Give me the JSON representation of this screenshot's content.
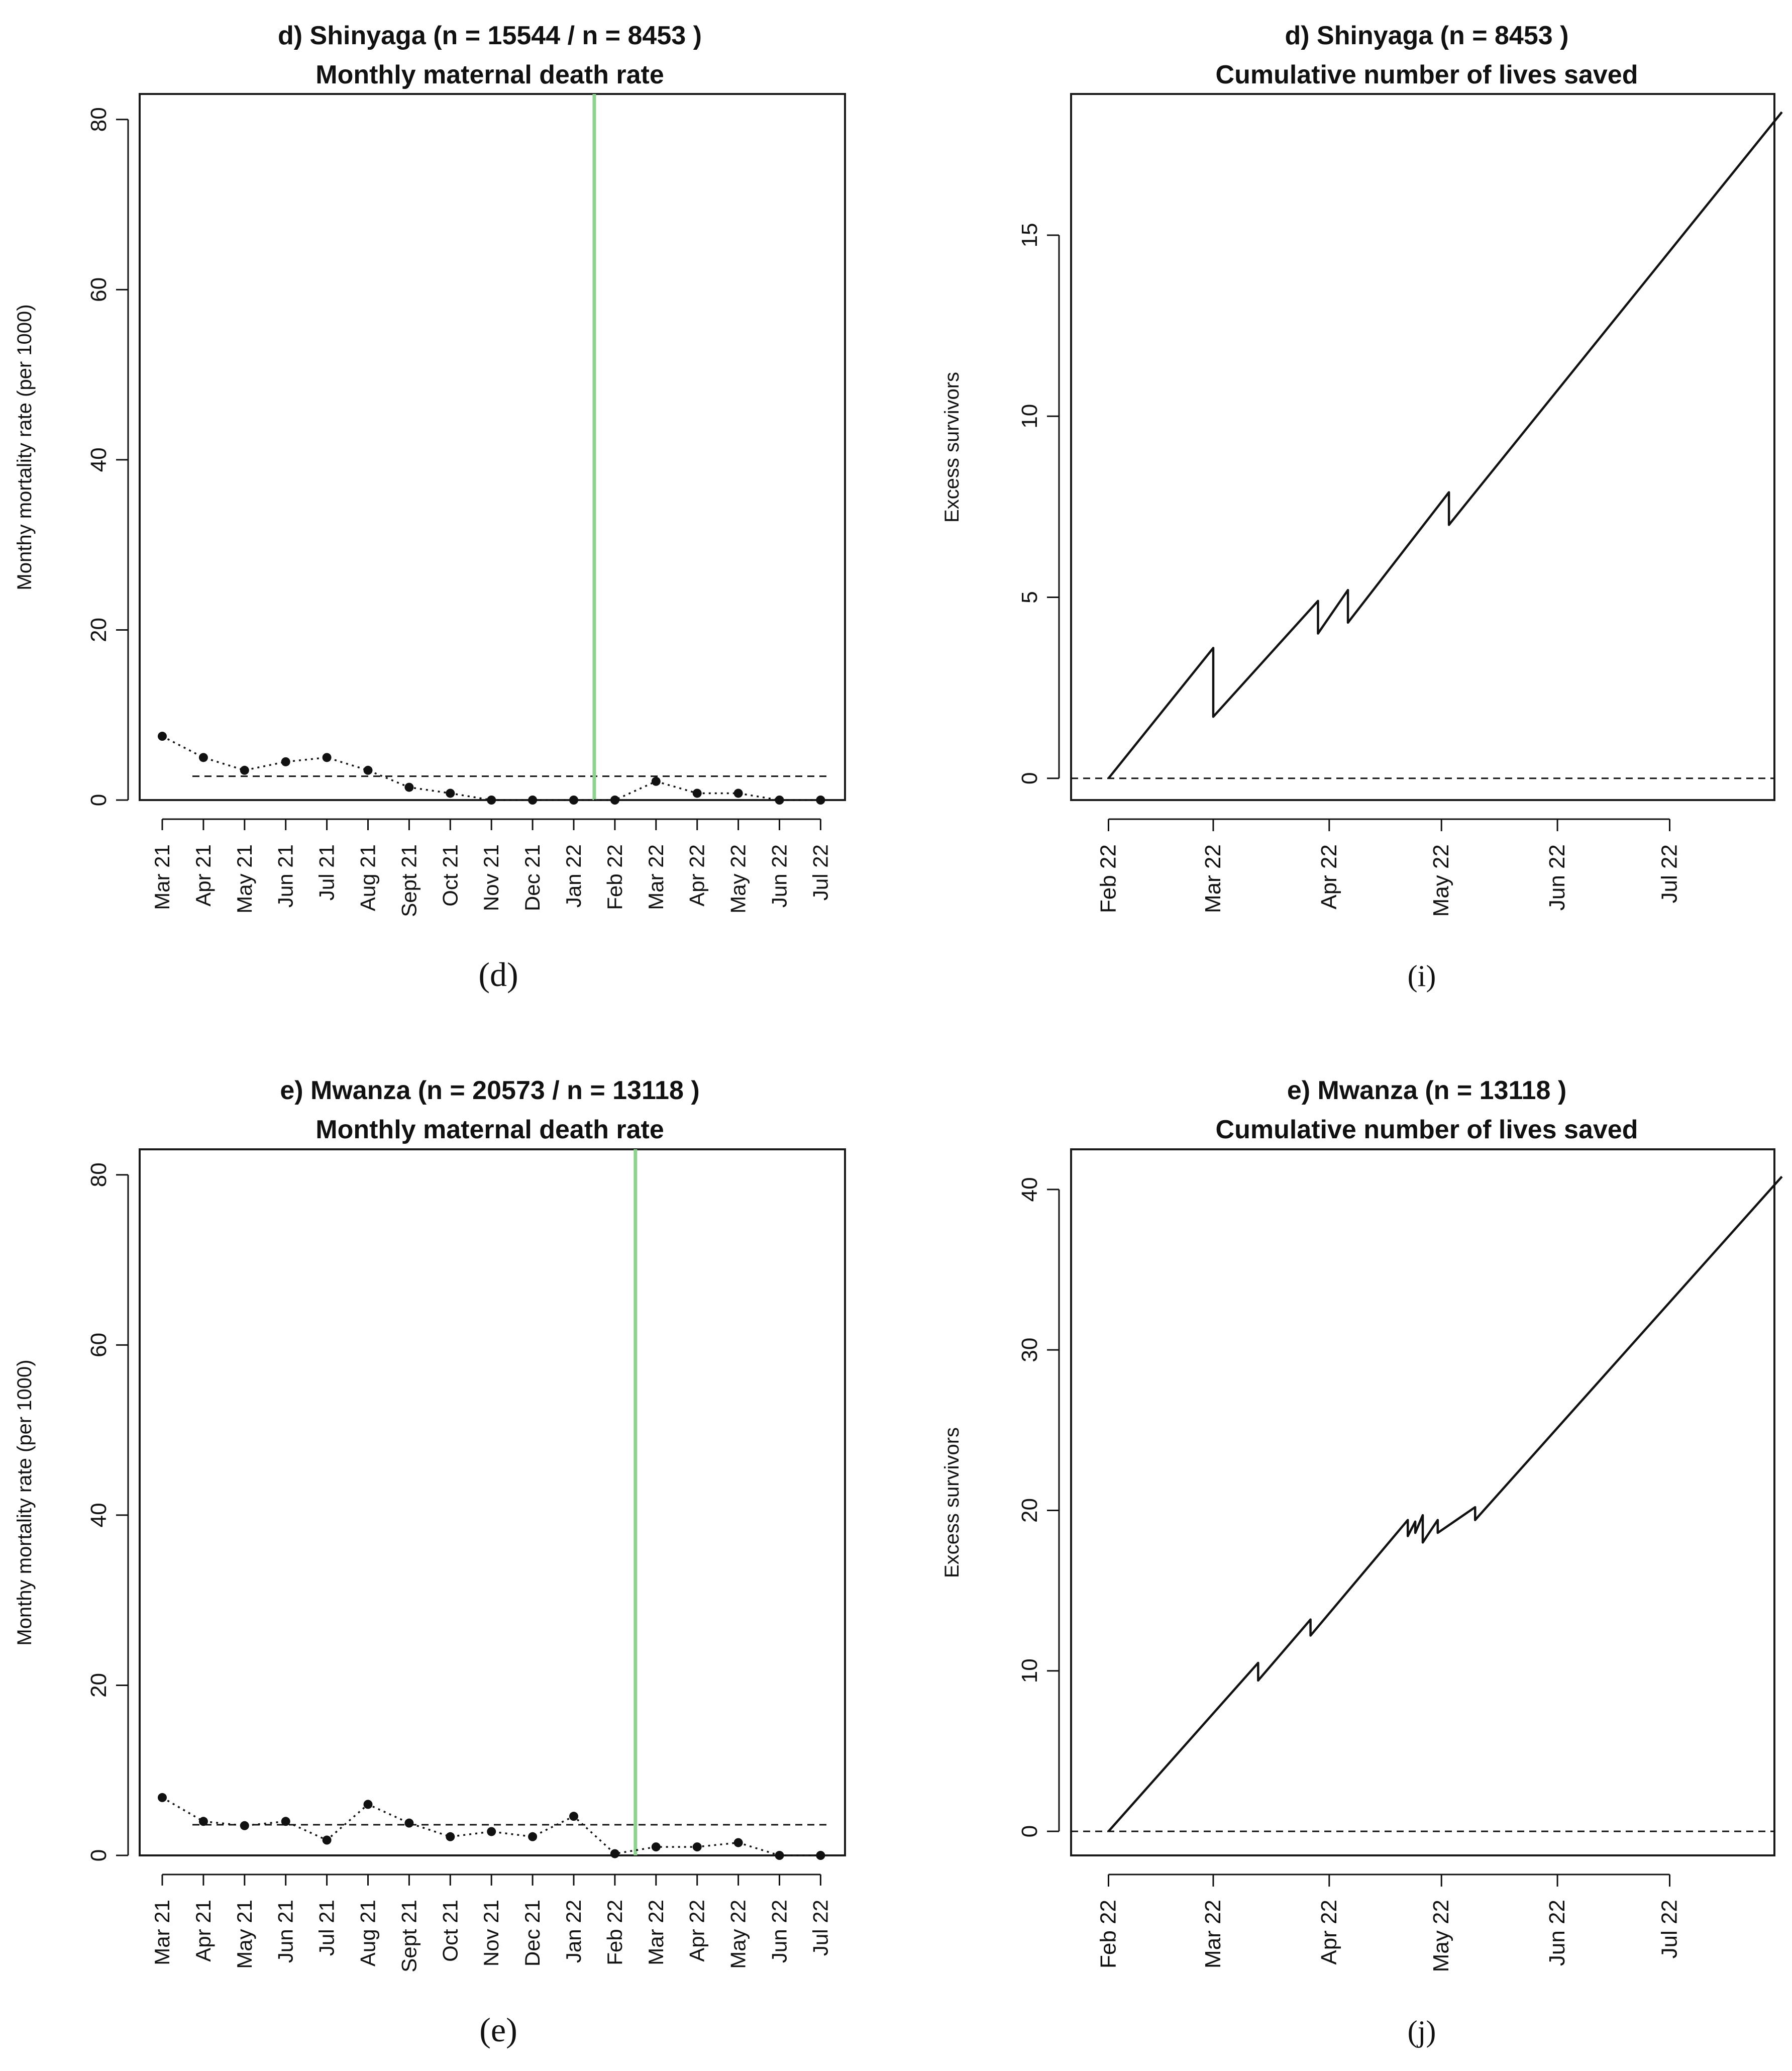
{
  "colors": {
    "ink": "#111111",
    "intervention_line": "#8fd18f",
    "axis": "#1a1a1a"
  },
  "chart_data": [
    {
      "id": "d",
      "type": "line",
      "caption": "(d)",
      "title": "d) Shinyaga (n = 15544  / n = 8453 )",
      "subtitle": "Monthly maternal death rate",
      "xlabel": "",
      "ylabel": "Monthy mortality rate (per 1000)",
      "ylim": [
        0,
        83
      ],
      "yticks": [
        0,
        20,
        40,
        60,
        80
      ],
      "categories": [
        "Mar 21",
        "Apr 21",
        "May 21",
        "Jun 21",
        "Jul 21",
        "Aug 21",
        "Sept 21",
        "Oct 21",
        "Nov 21",
        "Dec 21",
        "Jan 22",
        "Feb 22",
        "Mar 22",
        "Apr 22",
        "May 22",
        "Jun 22",
        "Jul 22"
      ],
      "values": [
        7.5,
        5.0,
        3.5,
        4.5,
        5.0,
        3.5,
        1.5,
        0.8,
        0.0,
        0.0,
        0.0,
        0.0,
        2.2,
        0.8,
        0.8,
        0.0,
        0.0
      ],
      "reference_line": 2.8,
      "intervention_after_index": 10.5,
      "grid": false
    },
    {
      "id": "i",
      "type": "line",
      "caption": "(i)",
      "title": "d) Shinyaga (n = 8453 )",
      "subtitle": "Cumulative number of lives saved",
      "xlabel": "",
      "ylabel": "Excess survivors",
      "ylim": [
        -0.6,
        18.9
      ],
      "yticks": [
        0,
        5,
        10,
        15
      ],
      "xlim": [
        -10,
        178
      ],
      "xticks": [
        0,
        28,
        59,
        89,
        120,
        150
      ],
      "xticklabels": [
        "Feb 22",
        "Mar 22",
        "Apr 22",
        "May 22",
        "Jun 22",
        "Jul 22"
      ],
      "x": [
        0,
        28,
        28,
        56,
        56,
        64,
        64,
        91,
        91,
        180
      ],
      "y": [
        0,
        3.6,
        1.7,
        4.9,
        4.0,
        5.2,
        4.3,
        7.9,
        7.0,
        18.4
      ],
      "reference_line": 0,
      "grid": false
    },
    {
      "id": "e",
      "type": "line",
      "caption": "(e)",
      "title": "e) Mwanza (n = 20573  / n = 13118 )",
      "subtitle": "Monthly maternal death rate",
      "xlabel": "",
      "ylabel": "Monthy mortality rate (per 1000)",
      "ylim": [
        0,
        83
      ],
      "yticks": [
        0,
        20,
        40,
        60,
        80
      ],
      "categories": [
        "Mar 21",
        "Apr 21",
        "May 21",
        "Jun 21",
        "Jul 21",
        "Aug 21",
        "Sept 21",
        "Oct 21",
        "Nov 21",
        "Dec 21",
        "Jan 22",
        "Feb 22",
        "Mar 22",
        "Apr 22",
        "May 22",
        "Jun 22",
        "Jul 22"
      ],
      "values": [
        6.8,
        4.0,
        3.5,
        4.0,
        1.8,
        6.0,
        3.8,
        2.2,
        2.8,
        2.2,
        4.6,
        0.2,
        1.0,
        1.0,
        1.5,
        0.0,
        0.0
      ],
      "reference_line": 3.6,
      "intervention_after_index": 11.5,
      "grid": false
    },
    {
      "id": "j",
      "type": "line",
      "caption": "(j)",
      "title": "e) Mwanza (n = 13118 )",
      "subtitle": "Cumulative number of lives saved",
      "xlabel": "",
      "ylabel": "Excess survivors",
      "ylim": [
        -1.5,
        42.5
      ],
      "yticks": [
        0,
        10,
        20,
        30,
        40
      ],
      "xlim": [
        -10,
        178
      ],
      "xticks": [
        0,
        28,
        59,
        89,
        120,
        150
      ],
      "xticklabels": [
        "Feb 22",
        "Mar 22",
        "Apr 22",
        "May 22",
        "Jun 22",
        "Jul 22"
      ],
      "x": [
        0,
        40,
        40,
        54,
        54,
        80,
        80,
        82,
        82,
        84,
        84,
        88,
        88,
        98,
        98,
        180
      ],
      "y": [
        0,
        10.5,
        9.4,
        13.2,
        12.2,
        19.4,
        18.4,
        19.3,
        18.6,
        19.7,
        18.0,
        19.4,
        18.6,
        20.2,
        19.4,
        40.8
      ],
      "reference_line": 0,
      "grid": false
    }
  ]
}
